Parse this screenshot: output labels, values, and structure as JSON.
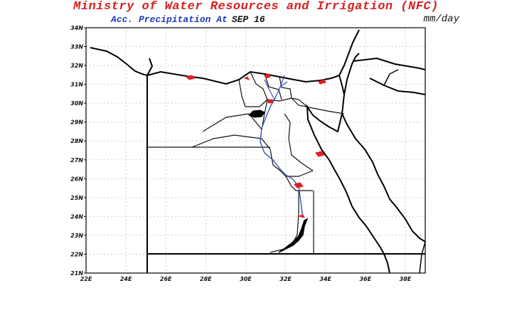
{
  "header": {
    "title": "Ministry of Water Resources and Irrigation (NFC)",
    "subtitle": "Acc. Precipitation  At",
    "date": "SEP 16",
    "units": "mm/day"
  },
  "map": {
    "lat_labels": [
      "34N",
      "33N",
      "32N",
      "31N",
      "30N",
      "29N",
      "28N",
      "27N",
      "26N",
      "25N",
      "24N",
      "23N",
      "22N",
      "21N"
    ],
    "lon_labels": [
      "22E",
      "24E",
      "26E",
      "28E",
      "30E",
      "32E",
      "34E",
      "36E",
      "38E"
    ],
    "colors": {
      "border": "#000000",
      "nile": "#3a4fb3",
      "precip": "#e02020",
      "grid": "#9a9a9a"
    }
  }
}
